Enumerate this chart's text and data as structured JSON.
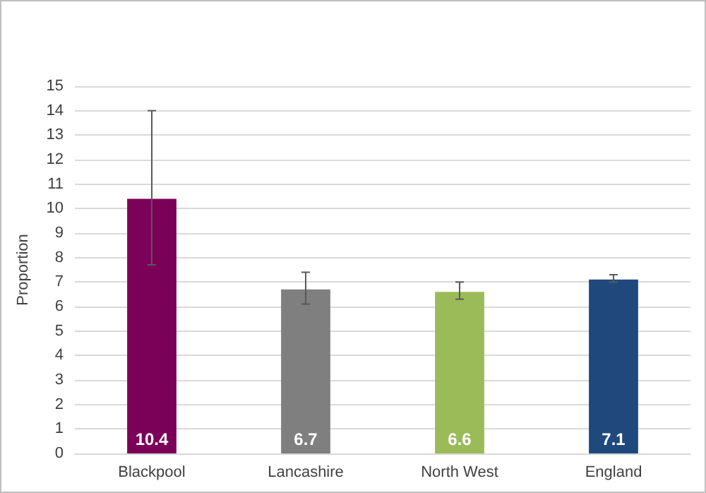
{
  "chart_data": {
    "type": "bar",
    "ylabel": "Proportion",
    "categories": [
      "Blackpool",
      "Lancashire",
      "North West",
      "England"
    ],
    "values": [
      10.4,
      6.7,
      6.6,
      7.1
    ],
    "colors": [
      "#7b0057",
      "#7f7f7f",
      "#9bbb59",
      "#1f497d"
    ],
    "errors": [
      [
        7.7,
        14.0
      ],
      [
        6.1,
        7.4
      ],
      [
        6.3,
        7.0
      ],
      [
        7.0,
        7.3
      ]
    ],
    "data_labels": true,
    "ylim": [
      0,
      15
    ],
    "yticks": [
      0,
      1,
      2,
      3,
      4,
      5,
      6,
      7,
      8,
      9,
      10,
      11,
      12,
      13,
      14,
      15
    ],
    "grid": "y"
  }
}
